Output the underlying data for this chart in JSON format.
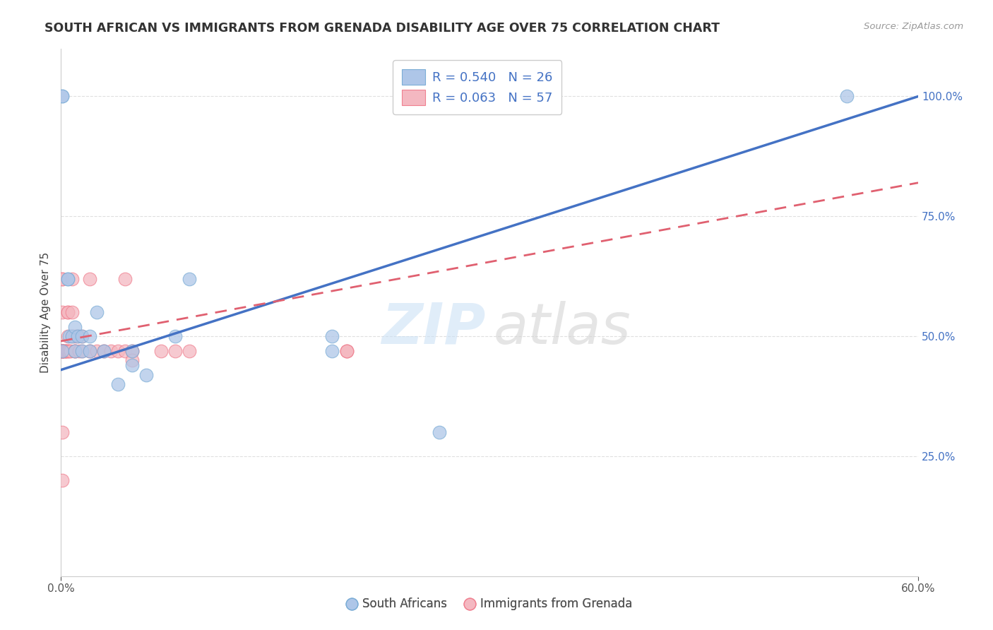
{
  "title": "SOUTH AFRICAN VS IMMIGRANTS FROM GRENADA DISABILITY AGE OVER 75 CORRELATION CHART",
  "source": "Source: ZipAtlas.com",
  "ylabel_label": "Disability Age Over 75",
  "legend_line1": "R = 0.540   N = 26",
  "legend_line2": "R = 0.063   N = 57",
  "bottom_legend": [
    "South Africans",
    "Immigrants from Grenada"
  ],
  "blue_fill": "#aec6e8",
  "pink_fill": "#f4b8c1",
  "blue_dot": "#7badd6",
  "pink_dot": "#f08090",
  "blue_line": "#4472c4",
  "pink_line": "#e06070",
  "grid_color": "#e0e0e0",
  "ytick_color": "#4472c4",
  "xlim": [
    0.0,
    0.6
  ],
  "ylim": [
    0.0,
    110.0
  ],
  "yticks": [
    25.0,
    50.0,
    75.0,
    100.0
  ],
  "ytick_labels": [
    "25.0%",
    "50.0%",
    "75.0%",
    "100.0%"
  ],
  "xticks": [
    0.0,
    0.6
  ],
  "xtick_labels": [
    "0.0%",
    "60.0%"
  ],
  "blue_line_x0": 0.0,
  "blue_line_y0": 43.0,
  "blue_line_x1": 0.6,
  "blue_line_y1": 100.0,
  "pink_line_x0": 0.0,
  "pink_line_y0": 49.0,
  "pink_line_x1": 0.6,
  "pink_line_y1": 82.0,
  "south_africans_x": [
    0.001,
    0.001,
    0.001,
    0.005,
    0.005,
    0.006,
    0.008,
    0.01,
    0.01,
    0.012,
    0.015,
    0.015,
    0.02,
    0.02,
    0.025,
    0.03,
    0.04,
    0.05,
    0.05,
    0.06,
    0.08,
    0.09,
    0.19,
    0.19,
    0.265,
    0.55
  ],
  "south_africans_y": [
    100.0,
    100.0,
    47.0,
    62.0,
    62.0,
    50.0,
    50.0,
    52.0,
    47.0,
    50.0,
    50.0,
    47.0,
    50.0,
    47.0,
    55.0,
    47.0,
    40.0,
    47.0,
    44.0,
    42.0,
    50.0,
    62.0,
    50.0,
    47.0,
    30.0,
    100.0
  ],
  "grenada_x": [
    0.001,
    0.001,
    0.001,
    0.001,
    0.001,
    0.001,
    0.001,
    0.001,
    0.001,
    0.001,
    0.001,
    0.001,
    0.001,
    0.001,
    0.001,
    0.003,
    0.003,
    0.003,
    0.003,
    0.004,
    0.005,
    0.005,
    0.005,
    0.005,
    0.005,
    0.006,
    0.007,
    0.008,
    0.008,
    0.008,
    0.01,
    0.01,
    0.01,
    0.01,
    0.012,
    0.013,
    0.015,
    0.015,
    0.02,
    0.02,
    0.02,
    0.025,
    0.03,
    0.03,
    0.035,
    0.04,
    0.045,
    0.045,
    0.05,
    0.05,
    0.05,
    0.07,
    0.08,
    0.09,
    0.2,
    0.2,
    0.2
  ],
  "grenada_y": [
    47.0,
    47.0,
    47.0,
    47.0,
    47.0,
    47.0,
    47.0,
    47.0,
    47.0,
    30.0,
    20.0,
    47.0,
    62.0,
    55.0,
    62.0,
    47.0,
    47.0,
    47.0,
    47.0,
    47.0,
    55.0,
    55.0,
    50.0,
    47.0,
    47.0,
    47.0,
    47.0,
    62.0,
    55.0,
    50.0,
    50.0,
    47.0,
    47.0,
    47.0,
    50.0,
    47.0,
    50.0,
    47.0,
    47.0,
    62.0,
    47.0,
    47.0,
    47.0,
    47.0,
    47.0,
    47.0,
    47.0,
    62.0,
    47.0,
    47.0,
    45.0,
    47.0,
    47.0,
    47.0,
    47.0,
    47.0,
    47.0
  ]
}
